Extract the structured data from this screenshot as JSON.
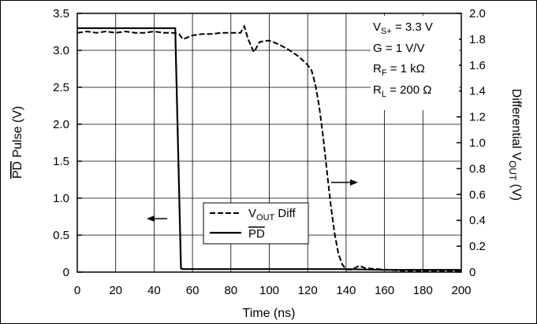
{
  "chart_data": {
    "type": "line",
    "xlabel": "Time (ns)",
    "ylabel_left": "PD Pulse (V)",
    "ylabel_right": "Differential VOUT (V)",
    "x_ticks": [
      "0",
      "20",
      "40",
      "60",
      "80",
      "100",
      "120",
      "140",
      "160",
      "180",
      "200"
    ],
    "y_left_ticks": [
      "0",
      "0.5",
      "1.0",
      "1.5",
      "2.0",
      "2.5",
      "3.0",
      "3.5"
    ],
    "y_right_ticks": [
      "0",
      "0.2",
      "0.4",
      "0.6",
      "0.8",
      "1.0",
      "1.2",
      "1.4",
      "1.6",
      "1.8",
      "2.0"
    ],
    "xlim": [
      0,
      200
    ],
    "ylim_left": [
      0,
      3.5
    ],
    "ylim_right": [
      0,
      2.0
    ],
    "grid": true,
    "annotations": [
      "VS+ = 3.3 V",
      "G = 1 V/V",
      "RF = 1 kΩ",
      "RL = 200 Ω"
    ],
    "series": [
      {
        "name": "VOUT Diff",
        "axis": "right",
        "style": "dashed",
        "x": [
          0,
          5,
          10,
          15,
          20,
          25,
          30,
          35,
          40,
          45,
          50,
          53,
          55,
          60,
          65,
          70,
          75,
          80,
          85,
          87,
          89,
          92,
          95,
          100,
          105,
          110,
          115,
          118,
          120,
          122,
          124,
          126,
          128,
          130,
          132,
          134,
          136,
          138,
          140,
          143,
          147,
          150,
          160,
          170,
          180,
          190,
          200
        ],
        "values": [
          1.85,
          1.86,
          1.85,
          1.86,
          1.85,
          1.86,
          1.85,
          1.85,
          1.86,
          1.85,
          1.85,
          1.84,
          1.8,
          1.83,
          1.84,
          1.84,
          1.85,
          1.85,
          1.85,
          1.9,
          1.8,
          1.7,
          1.78,
          1.79,
          1.76,
          1.72,
          1.67,
          1.63,
          1.6,
          1.56,
          1.45,
          1.28,
          1.05,
          0.78,
          0.52,
          0.3,
          0.14,
          0.06,
          0.02,
          0.02,
          0.05,
          0.03,
          0.02,
          0.01,
          0.01,
          0.01,
          0.01
        ]
      },
      {
        "name": "PD",
        "axis": "left",
        "style": "solid",
        "x": [
          0,
          50,
          51,
          54,
          55,
          60,
          80,
          100,
          140,
          160,
          200
        ],
        "values": [
          3.3,
          3.3,
          3.3,
          0.05,
          0.04,
          0.04,
          0.04,
          0.04,
          0.04,
          0.03,
          0.03
        ]
      }
    ],
    "legend": {
      "placement": "center-left",
      "entries": [
        "VOUT Diff",
        "PD"
      ]
    }
  }
}
